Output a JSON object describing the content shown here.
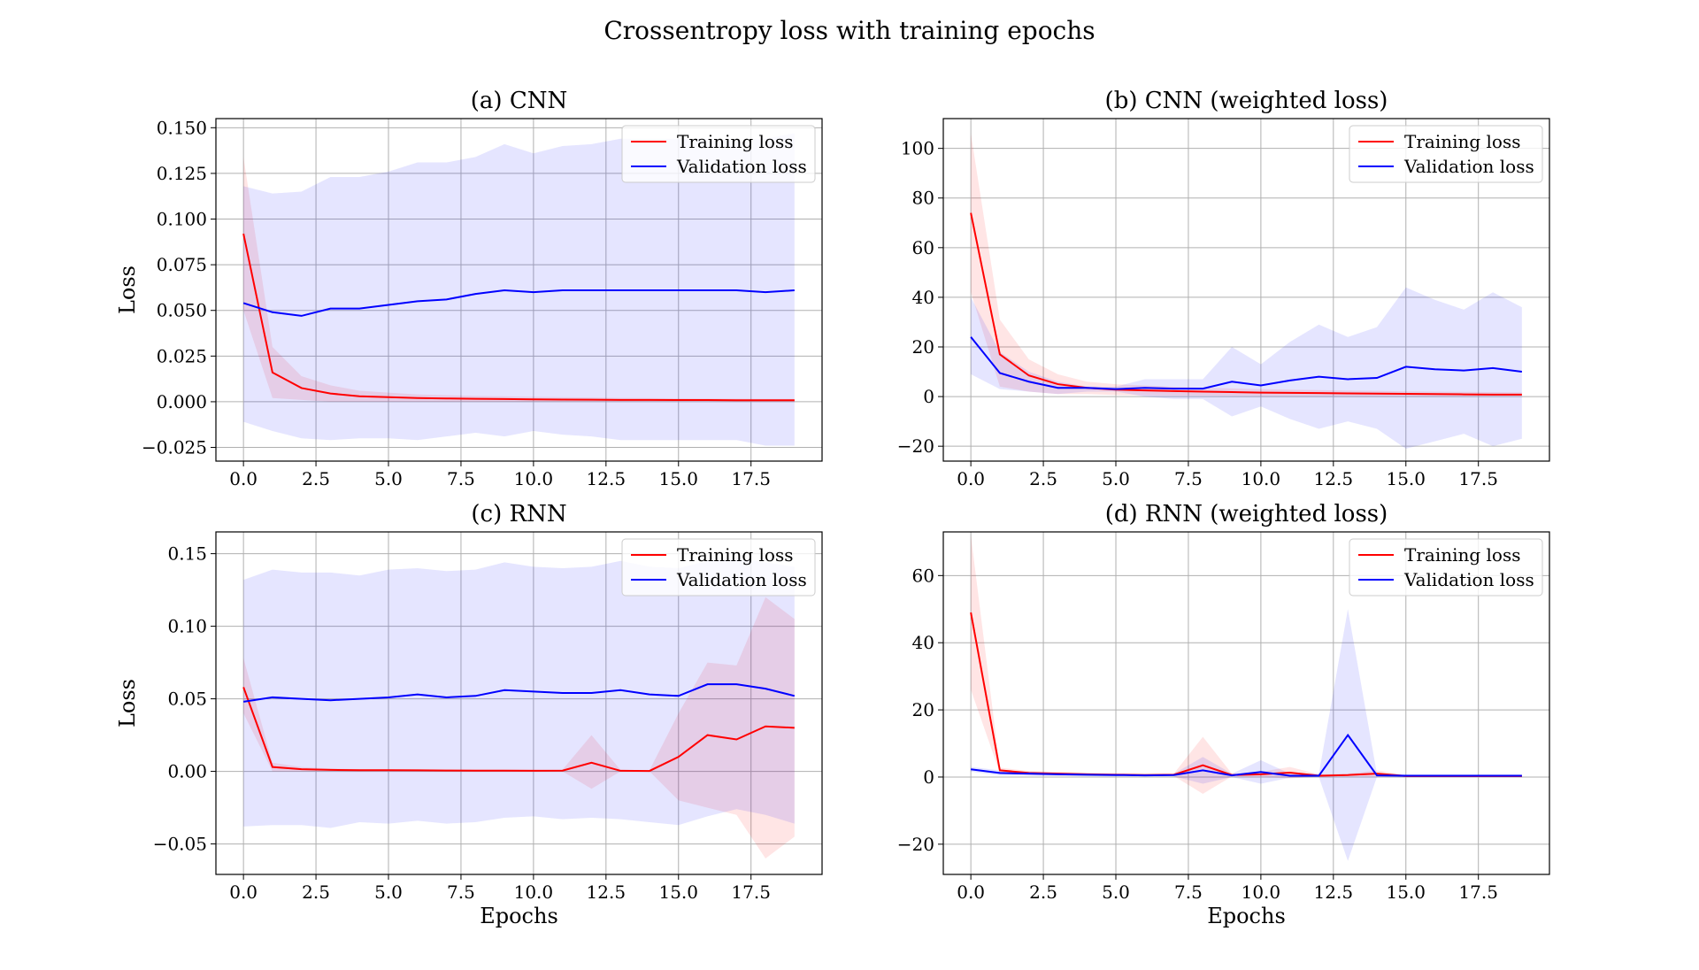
{
  "figure": {
    "title": "Crossentropy loss with training epochs"
  },
  "colors": {
    "training": "#ff0000",
    "validation": "#0000ff",
    "grid": "#b0b0b0"
  },
  "chart_data": [
    {
      "type": "line",
      "title": "(a) CNN",
      "xlabel": "",
      "ylabel": "Loss",
      "xlim": [
        -0.95,
        19.95
      ],
      "ylim": [
        -0.0325,
        0.155
      ],
      "xticks": [
        "0.0",
        "2.5",
        "5.0",
        "7.5",
        "10.0",
        "12.5",
        "15.0",
        "17.5"
      ],
      "yticks": [
        "−0.025",
        "0.000",
        "0.025",
        "0.050",
        "0.075",
        "0.100",
        "0.125",
        "0.150"
      ],
      "grid": true,
      "legend": "upper right",
      "x": [
        0,
        1,
        2,
        3,
        4,
        5,
        6,
        7,
        8,
        9,
        10,
        11,
        12,
        13,
        14,
        15,
        16,
        17,
        18,
        19
      ],
      "series": [
        {
          "name": "Training loss",
          "values": [
            0.092,
            0.016,
            0.0075,
            0.0045,
            0.003,
            0.0025,
            0.002,
            0.0018,
            0.0016,
            0.0015,
            0.0013,
            0.0012,
            0.0011,
            0.001,
            0.001,
            0.0009,
            0.0009,
            0.0008,
            0.0008,
            0.0008
          ],
          "band_upper": [
            0.134,
            0.03,
            0.014,
            0.009,
            0.006,
            0.005,
            0.004,
            0.0036,
            0.0032,
            0.003,
            0.0027,
            0.0025,
            0.0023,
            0.0021,
            0.002,
            0.0019,
            0.0018,
            0.0017,
            0.0016,
            0.0016
          ],
          "band_lower": [
            0.05,
            0.002,
            0.001,
            0.0,
            0.0,
            0.0,
            0.0,
            0.0,
            0.0,
            0.0,
            0.0,
            0.0,
            0.0,
            0.0,
            0.0,
            0.0,
            0.0,
            0.0,
            0.0,
            0.0
          ]
        },
        {
          "name": "Validation loss",
          "values": [
            0.054,
            0.049,
            0.047,
            0.051,
            0.051,
            0.053,
            0.055,
            0.056,
            0.059,
            0.061,
            0.06,
            0.061,
            0.061,
            0.061,
            0.061,
            0.061,
            0.061,
            0.061,
            0.06,
            0.061
          ],
          "band_upper": [
            0.118,
            0.114,
            0.115,
            0.123,
            0.123,
            0.126,
            0.131,
            0.131,
            0.134,
            0.141,
            0.136,
            0.14,
            0.141,
            0.144,
            0.144,
            0.144,
            0.144,
            0.143,
            0.144,
            0.147
          ],
          "band_lower": [
            -0.011,
            -0.016,
            -0.02,
            -0.021,
            -0.02,
            -0.02,
            -0.021,
            -0.019,
            -0.017,
            -0.019,
            -0.016,
            -0.018,
            -0.019,
            -0.021,
            -0.021,
            -0.021,
            -0.021,
            -0.021,
            -0.024,
            -0.024
          ]
        }
      ]
    },
    {
      "type": "line",
      "title": "(b) CNN (weighted loss)",
      "xlabel": "",
      "ylabel": "",
      "xlim": [
        -0.95,
        19.95
      ],
      "ylim": [
        -26,
        112
      ],
      "xticks": [
        "0.0",
        "2.5",
        "5.0",
        "7.5",
        "10.0",
        "12.5",
        "15.0",
        "17.5"
      ],
      "yticks": [
        "−20",
        "0",
        "20",
        "40",
        "60",
        "80",
        "100"
      ],
      "grid": true,
      "legend": "upper right",
      "x": [
        0,
        1,
        2,
        3,
        4,
        5,
        6,
        7,
        8,
        9,
        10,
        11,
        12,
        13,
        14,
        15,
        16,
        17,
        18,
        19
      ],
      "series": [
        {
          "name": "Training loss",
          "values": [
            74,
            17,
            8.5,
            5,
            3.5,
            2.8,
            2.5,
            2.2,
            2,
            1.8,
            1.6,
            1.5,
            1.4,
            1.3,
            1.2,
            1.1,
            1,
            0.9,
            0.8,
            0.8
          ],
          "band_upper": [
            106,
            31,
            15,
            9,
            6,
            5,
            4.5,
            4,
            3.6,
            3.3,
            3,
            2.8,
            2.6,
            2.4,
            2.3,
            2.1,
            2,
            1.9,
            1.8,
            1.7
          ],
          "band_lower": [
            42,
            4,
            2,
            1,
            1,
            0.6,
            0.5,
            0.4,
            0.4,
            0.3,
            0.2,
            0.2,
            0.2,
            0.2,
            0.1,
            0.1,
            0.1,
            0.1,
            0.1,
            0.1
          ]
        },
        {
          "name": "Validation loss",
          "values": [
            24,
            9.5,
            6,
            3.5,
            3.5,
            3,
            3.5,
            3.2,
            3.2,
            6,
            4.5,
            6.5,
            8,
            7,
            7.5,
            12,
            11,
            10.5,
            11.5,
            10
          ],
          "band_upper": [
            40,
            18,
            10,
            6,
            4,
            4,
            7,
            7,
            7,
            20,
            13,
            22,
            29,
            24,
            28,
            44,
            39,
            35,
            42,
            36
          ],
          "band_lower": [
            9,
            3,
            2,
            1,
            2,
            2,
            0,
            -1,
            -1,
            -8,
            -4,
            -9,
            -13,
            -10,
            -13,
            -21,
            -18,
            -15,
            -20,
            -17
          ]
        }
      ]
    },
    {
      "type": "line",
      "title": "(c) RNN",
      "xlabel": "Epochs",
      "ylabel": "Loss",
      "xlim": [
        -0.95,
        19.95
      ],
      "ylim": [
        -0.071,
        0.165
      ],
      "xticks": [
        "0.0",
        "2.5",
        "5.0",
        "7.5",
        "10.0",
        "12.5",
        "15.0",
        "17.5"
      ],
      "yticks": [
        "−0.05",
        "0.00",
        "0.05",
        "0.10",
        "0.15"
      ],
      "grid": true,
      "legend": "upper right",
      "x": [
        0,
        1,
        2,
        3,
        4,
        5,
        6,
        7,
        8,
        9,
        10,
        11,
        12,
        13,
        14,
        15,
        16,
        17,
        18,
        19
      ],
      "series": [
        {
          "name": "Training loss",
          "values": [
            0.058,
            0.003,
            0.0015,
            0.001,
            0.0008,
            0.0008,
            0.0007,
            0.0006,
            0.0005,
            0.0005,
            0.0004,
            0.0005,
            0.006,
            0.0004,
            0.0003,
            0.01,
            0.025,
            0.022,
            0.031,
            0.03
          ],
          "band_upper": [
            0.078,
            0.006,
            0.003,
            0.002,
            0.0016,
            0.0015,
            0.0014,
            0.0013,
            0.0012,
            0.0011,
            0.001,
            0.0012,
            0.025,
            0.001,
            0.0008,
            0.04,
            0.075,
            0.073,
            0.12,
            0.105
          ],
          "band_lower": [
            0.04,
            0.0,
            0.0,
            0.0,
            0.0,
            0.0,
            0.0,
            0.0,
            0.0,
            0.0,
            0.0,
            0.0,
            -0.012,
            0.0,
            0.0,
            -0.02,
            -0.025,
            -0.03,
            -0.06,
            -0.045
          ]
        },
        {
          "name": "Validation loss",
          "values": [
            0.048,
            0.051,
            0.05,
            0.049,
            0.05,
            0.051,
            0.053,
            0.051,
            0.052,
            0.056,
            0.055,
            0.054,
            0.054,
            0.056,
            0.053,
            0.052,
            0.06,
            0.06,
            0.057,
            0.052
          ],
          "band_upper": [
            0.132,
            0.139,
            0.137,
            0.137,
            0.135,
            0.139,
            0.14,
            0.138,
            0.139,
            0.144,
            0.141,
            0.14,
            0.141,
            0.145,
            0.141,
            0.14,
            0.145,
            0.147,
            0.144,
            0.141
          ],
          "band_lower": [
            -0.038,
            -0.037,
            -0.037,
            -0.039,
            -0.035,
            -0.036,
            -0.034,
            -0.036,
            -0.035,
            -0.032,
            -0.031,
            -0.033,
            -0.032,
            -0.033,
            -0.035,
            -0.037,
            -0.031,
            -0.026,
            -0.03,
            -0.036
          ]
        }
      ]
    },
    {
      "type": "line",
      "title": "(d) RNN (weighted loss)",
      "xlabel": "Epochs",
      "ylabel": "",
      "xlim": [
        -0.95,
        19.95
      ],
      "ylim": [
        -29,
        73
      ],
      "xticks": [
        "0.0",
        "2.5",
        "5.0",
        "7.5",
        "10.0",
        "12.5",
        "15.0",
        "17.5"
      ],
      "yticks": [
        "−20",
        "0",
        "20",
        "40",
        "60"
      ],
      "grid": true,
      "legend": "upper right",
      "x": [
        0,
        1,
        2,
        3,
        4,
        5,
        6,
        7,
        8,
        9,
        10,
        11,
        12,
        13,
        14,
        15,
        16,
        17,
        18,
        19
      ],
      "series": [
        {
          "name": "Training loss",
          "values": [
            49,
            2,
            1.2,
            1,
            0.8,
            0.7,
            0.6,
            0.7,
            3.5,
            0.6,
            0.8,
            1.3,
            0.4,
            0.6,
            1,
            0.3,
            0.3,
            0.3,
            0.3,
            0.3
          ],
          "band_upper": [
            72,
            2.8,
            1.8,
            1.5,
            1.2,
            1,
            0.9,
            1,
            12,
            1,
            1.6,
            3,
            0.8,
            1,
            2,
            0.6,
            0.5,
            0.5,
            0.5,
            0.5
          ],
          "band_lower": [
            26,
            1.2,
            0.6,
            0.5,
            0.4,
            0.4,
            0.3,
            0.3,
            -5,
            0.2,
            0.1,
            -0.4,
            0.1,
            0.2,
            0.1,
            0.1,
            0.1,
            0.1,
            0.1,
            0.1
          ]
        },
        {
          "name": "Validation loss",
          "values": [
            2.3,
            1.2,
            1,
            0.8,
            0.7,
            0.6,
            0.5,
            0.6,
            2,
            0.5,
            1.5,
            0.4,
            0.4,
            12.5,
            0.5,
            0.4,
            0.4,
            0.4,
            0.4,
            0.4
          ],
          "band_upper": [
            3,
            2,
            1.6,
            1.3,
            1.1,
            1,
            0.9,
            1,
            6,
            1,
            5,
            1,
            1,
            50,
            1,
            0.8,
            0.8,
            0.8,
            0.8,
            0.8
          ],
          "band_lower": [
            1.6,
            0.5,
            0.4,
            0.3,
            0.3,
            0.2,
            0.2,
            0.2,
            -2,
            0,
            -2,
            -0.2,
            0,
            -25,
            0,
            0,
            0,
            0,
            0,
            0
          ]
        }
      ]
    }
  ]
}
